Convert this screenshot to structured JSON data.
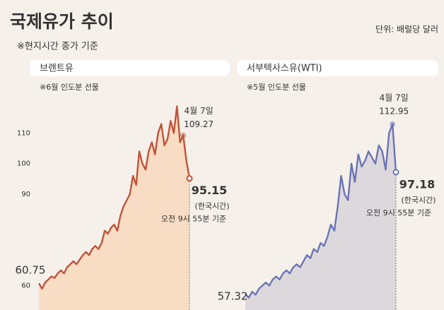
{
  "title": "국제유가 추이",
  "subtitle": "※현지시간 종가 기준",
  "unit": "단위: 배럴당 달러",
  "chart_data": [
    {
      "type": "line",
      "title": "브렌트유",
      "note": "※6월 인도분 선물",
      "color": "#c0533a",
      "fill": "#f8dcc3",
      "ylim": [
        52,
        121
      ],
      "yticks": [
        60,
        90,
        100,
        110
      ],
      "annotations": [
        "(한국시간)",
        "오전 9시 55분 기준"
      ],
      "categories": [
        null,
        null,
        null,
        null,
        null,
        null,
        null,
        null,
        null,
        null,
        null,
        null,
        null,
        null,
        null,
        null,
        null,
        null,
        null,
        null,
        null,
        null,
        null,
        null,
        null,
        null,
        null,
        null,
        null,
        null,
        null,
        null,
        null,
        null,
        null,
        null,
        null,
        null,
        null,
        null,
        null,
        null,
        null,
        null,
        null,
        null,
        "4월 7일",
        null,
        null
      ],
      "values": [
        60.75,
        59,
        61,
        62,
        63,
        62.5,
        64,
        65,
        64,
        66,
        67,
        68,
        67,
        68.5,
        70,
        71,
        70,
        72,
        73,
        72,
        74,
        78,
        77,
        79,
        80,
        78,
        83,
        86,
        88,
        90,
        96,
        93,
        104,
        100,
        98,
        104,
        107,
        103,
        110,
        113,
        106,
        108,
        114,
        110,
        118.8,
        107,
        109.27,
        101,
        95.15
      ]
    },
    {
      "type": "line",
      "title": "서부텍사스유(WTI)",
      "note": "※5월 인도분 선물",
      "color": "#6b74b4",
      "fill": "#ddd8dc",
      "ylim": [
        52,
        121
      ],
      "annotations": [
        "(한국시간)",
        "오전 9시 55분 기준"
      ],
      "categories": [
        null,
        null,
        null,
        null,
        null,
        null,
        null,
        null,
        null,
        null,
        null,
        null,
        null,
        null,
        null,
        null,
        null,
        null,
        null,
        null,
        null,
        null,
        null,
        null,
        null,
        null,
        null,
        null,
        null,
        null,
        null,
        null,
        null,
        null,
        null,
        null,
        null,
        null,
        null,
        null,
        null,
        null,
        null,
        "4월 7일",
        null
      ],
      "values": [
        57.32,
        56,
        58,
        57,
        59,
        60,
        61,
        60,
        62,
        63,
        62,
        64,
        65,
        64,
        66,
        67,
        66,
        68,
        70,
        69,
        72,
        71,
        74,
        73,
        76,
        80,
        78,
        86,
        96,
        90,
        88,
        100,
        94,
        103,
        99,
        101,
        104,
        102,
        100,
        106,
        104,
        98,
        110,
        112.95,
        97.18
      ]
    }
  ]
}
